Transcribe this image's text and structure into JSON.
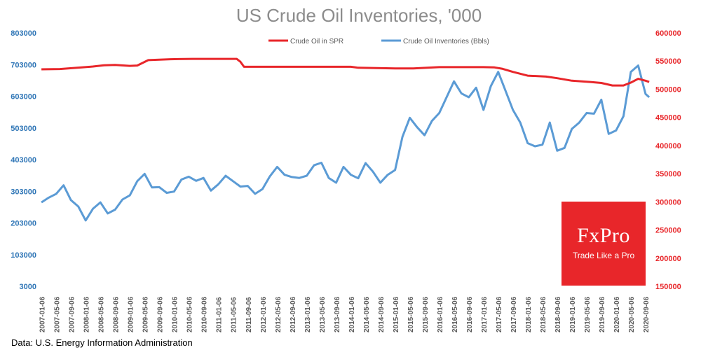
{
  "chart_data": {
    "type": "line",
    "title": "US Crude Oil Inventories, '000",
    "source": "Data: U.S. Energy Information Administration",
    "xlabel": "",
    "ylabel": "",
    "legend_position": "top",
    "grid": false,
    "colors": {
      "spr": "#e8262a",
      "inventories": "#5b9bd5",
      "left_axis": "#2e75b6",
      "right_axis": "#e8262a"
    },
    "y_left": {
      "ylim": [
        3000,
        803000
      ],
      "ticks": [
        "803000",
        "703000",
        "603000",
        "503000",
        "403000",
        "303000",
        "203000",
        "103000",
        "3000"
      ]
    },
    "y_right": {
      "ylim": [
        150000,
        600000
      ],
      "ticks": [
        "600000",
        "550000",
        "500000",
        "450000",
        "400000",
        "350000",
        "300000",
        "250000",
        "200000",
        "150000"
      ]
    },
    "x_ticks": [
      "2007-01-06",
      "2007-05-06",
      "2007-09-06",
      "2008-01-06",
      "2008-05-06",
      "2008-09-06",
      "2009-01-06",
      "2009-05-06",
      "2009-09-06",
      "2010-01-06",
      "2010-05-06",
      "2010-09-06",
      "2011-01-06",
      "2011-05-06",
      "2011-09-06",
      "2012-01-06",
      "2012-05-06",
      "2012-09-06",
      "2013-01-06",
      "2013-05-06",
      "2013-09-06",
      "2014-01-06",
      "2014-05-06",
      "2014-09-06",
      "2015-01-06",
      "2015-05-06",
      "2015-09-06",
      "2016-01-06",
      "2016-05-06",
      "2016-09-06",
      "2017-01-06",
      "2017-05-06",
      "2017-09-06",
      "2018-01-06",
      "2018-05-06",
      "2018-09-06",
      "2019-01-06",
      "2019-05-06",
      "2019-09-06",
      "2020-01-06",
      "2020-05-06",
      "2020-09-06"
    ],
    "series": [
      {
        "name": "Crude Oil in SPR",
        "axis": "left",
        "x": [
          "2007-01",
          "2007-06",
          "2007-12",
          "2008-03",
          "2008-06",
          "2008-09",
          "2009-01",
          "2009-03",
          "2009-06",
          "2009-12",
          "2010-06",
          "2010-12",
          "2011-03",
          "2011-06",
          "2011-07",
          "2011-08",
          "2012-06",
          "2013-06",
          "2014-01",
          "2014-03",
          "2015-01",
          "2015-06",
          "2016-01",
          "2016-06",
          "2017-01",
          "2017-04",
          "2017-06",
          "2017-09",
          "2018-01",
          "2018-06",
          "2018-09",
          "2019-01",
          "2019-06",
          "2019-09",
          "2019-12",
          "2020-03",
          "2020-05",
          "2020-07",
          "2020-09",
          "2020-10"
        ],
        "values": [
          688000,
          689000,
          694000,
          697000,
          701000,
          702000,
          699000,
          700000,
          717000,
          720000,
          721000,
          721000,
          721000,
          721000,
          712000,
          696000,
          696000,
          696000,
          696000,
          693000,
          691000,
          691000,
          695000,
          695000,
          695000,
          694000,
          690000,
          680000,
          668000,
          665000,
          660000,
          652000,
          648000,
          645000,
          637000,
          637000,
          646000,
          658000,
          652000,
          648000
        ]
      },
      {
        "name": "Crude Oil Inventories (Bbls)",
        "axis": "left",
        "x": [
          "2007-01",
          "2007-03",
          "2007-05",
          "2007-07",
          "2007-09",
          "2007-11",
          "2008-01",
          "2008-03",
          "2008-05",
          "2008-07",
          "2008-09",
          "2008-11",
          "2009-01",
          "2009-03",
          "2009-05",
          "2009-07",
          "2009-09",
          "2009-11",
          "2010-01",
          "2010-03",
          "2010-05",
          "2010-07",
          "2010-09",
          "2010-11",
          "2011-01",
          "2011-03",
          "2011-05",
          "2011-07",
          "2011-09",
          "2011-11",
          "2012-01",
          "2012-03",
          "2012-05",
          "2012-07",
          "2012-09",
          "2012-11",
          "2013-01",
          "2013-03",
          "2013-05",
          "2013-07",
          "2013-09",
          "2013-11",
          "2014-01",
          "2014-03",
          "2014-05",
          "2014-07",
          "2014-09",
          "2014-11",
          "2015-01",
          "2015-03",
          "2015-05",
          "2015-07",
          "2015-09",
          "2015-11",
          "2016-01",
          "2016-03",
          "2016-05",
          "2016-07",
          "2016-09",
          "2016-11",
          "2017-01",
          "2017-03",
          "2017-05",
          "2017-07",
          "2017-09",
          "2017-11",
          "2018-01",
          "2018-03",
          "2018-05",
          "2018-07",
          "2018-09",
          "2018-11",
          "2019-01",
          "2019-03",
          "2019-05",
          "2019-07",
          "2019-09",
          "2019-11",
          "2020-01",
          "2020-03",
          "2020-05",
          "2020-07",
          "2020-09",
          "2020-10"
        ],
        "values": [
          268000,
          283000,
          295000,
          322000,
          275000,
          255000,
          211000,
          248000,
          268000,
          233000,
          245000,
          277000,
          290000,
          335000,
          358000,
          315000,
          316000,
          298000,
          302000,
          340000,
          349000,
          336000,
          345000,
          305000,
          325000,
          352000,
          335000,
          318000,
          320000,
          295000,
          310000,
          350000,
          380000,
          355000,
          348000,
          345000,
          352000,
          385000,
          393000,
          345000,
          330000,
          380000,
          355000,
          344000,
          392000,
          365000,
          330000,
          355000,
          370000,
          475000,
          535000,
          505000,
          480000,
          525000,
          550000,
          600000,
          650000,
          612000,
          600000,
          630000,
          560000,
          635000,
          680000,
          620000,
          560000,
          520000,
          455000,
          445000,
          450000,
          520000,
          431000,
          440000,
          500000,
          520000,
          550000,
          548000,
          592000,
          484000,
          495000,
          540000,
          680000,
          700000,
          610000,
          600000
        ]
      }
    ]
  }
}
